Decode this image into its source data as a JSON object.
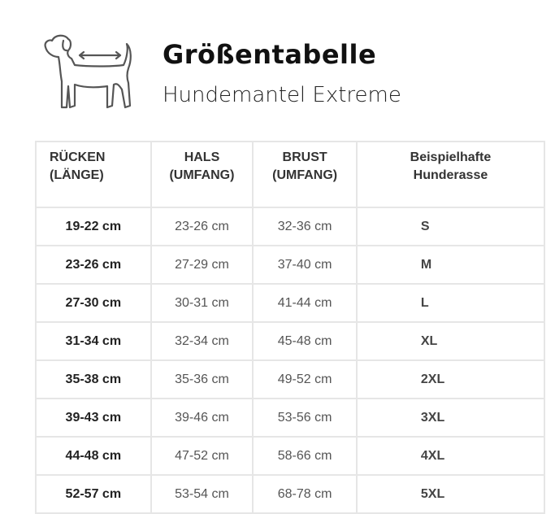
{
  "header": {
    "title": "Größentabelle",
    "subtitle": "Hundemantel Extreme",
    "icon": "dog-measure-icon"
  },
  "table": {
    "columns": [
      [
        "RÜCKEN",
        "(LÄNGE)"
      ],
      [
        "HALS",
        "(UMFANG)"
      ],
      [
        "BRUST",
        "(UMFANG)"
      ],
      [
        "Beispielhafte",
        "Hunderasse"
      ]
    ],
    "rows": [
      [
        "19-22 cm",
        "23-26 cm",
        "32-36 cm",
        "S"
      ],
      [
        "23-26 cm",
        "27-29 cm",
        "37-40 cm",
        "M"
      ],
      [
        "27-30 cm",
        "30-31 cm",
        "41-44 cm",
        "L"
      ],
      [
        "31-34 cm",
        "32-34 cm",
        "45-48 cm",
        "XL"
      ],
      [
        "35-38 cm",
        "35-36 cm",
        "49-52 cm",
        "2XL"
      ],
      [
        "39-43 cm",
        "39-46 cm",
        "53-56 cm",
        "3XL"
      ],
      [
        "44-48 cm",
        "47-52 cm",
        "58-66 cm",
        "4XL"
      ],
      [
        "52-57 cm",
        "53-54 cm",
        "68-78 cm",
        "5XL"
      ]
    ]
  }
}
